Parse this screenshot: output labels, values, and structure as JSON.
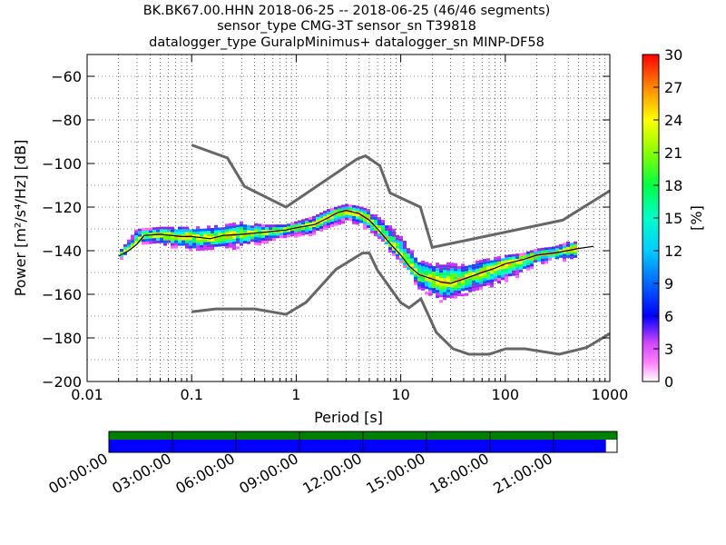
{
  "chart_data": {
    "type": "heatmap",
    "title_lines": [
      "BK.BK67.00.HHN   2018-06-25 -- 2018-06-25  (46/46 segments)",
      "sensor_type CMG-3T sensor_sn T39818",
      "datalogger_type GuralpMinimus+ datalogger_sn MINP-DF58"
    ],
    "xlabel": "Period [s]",
    "ylabel": "Power [m²/s⁴/Hz] [dB]",
    "x_scale": "log",
    "xlim": [
      0.01,
      1000
    ],
    "ylim": [
      -200,
      -50
    ],
    "x_ticks": [
      0.01,
      0.1,
      1,
      10,
      100,
      1000
    ],
    "x_tick_labels": [
      "0.01",
      "0.1",
      "1",
      "10",
      "100",
      "1000"
    ],
    "y_ticks": [
      -200,
      -180,
      -160,
      -140,
      -120,
      -100,
      -80,
      -60
    ],
    "y_tick_labels": [
      "−200",
      "−180",
      "−160",
      "−140",
      "−120",
      "−100",
      "−80",
      "−60"
    ],
    "grid": true,
    "colorbar": {
      "label": "[%]",
      "range": [
        0,
        30
      ],
      "ticks": [
        0,
        3,
        6,
        9,
        12,
        15,
        18,
        21,
        24,
        27,
        30
      ],
      "colormap": "pqlx"
    },
    "nhnm": {
      "name": "NHNM",
      "x": [
        0.1,
        0.22,
        0.32,
        0.8,
        3.8,
        4.6,
        6.3,
        7.9,
        15.4,
        20,
        354,
        1000
      ],
      "y": [
        -91.5,
        -97.4,
        -110.5,
        -120,
        -98,
        -96.5,
        -101,
        -113.5,
        -120,
        -138.5,
        -126,
        -112.5
      ]
    },
    "nlnm": {
      "name": "NLNM",
      "x": [
        0.1,
        0.17,
        0.4,
        0.8,
        1.24,
        2.4,
        4.3,
        5,
        6,
        10,
        12,
        15.6,
        21.9,
        31.6,
        45,
        70,
        101,
        154,
        328,
        600,
        1000
      ],
      "y": [
        -168,
        -166.7,
        -166.7,
        -169.2,
        -163.7,
        -148.6,
        -141.1,
        -141.1,
        -149,
        -163.8,
        -166.2,
        -162.1,
        -177.5,
        -185,
        -187.5,
        -187.5,
        -185,
        -185,
        -187.5,
        -184.4,
        -178
      ]
    },
    "mode_curve": {
      "x": [
        0.02,
        0.025,
        0.03,
        0.035,
        0.05,
        0.08,
        0.1,
        0.15,
        0.2,
        0.3,
        0.5,
        0.8,
        1,
        1.5,
        2,
        2.5,
        3,
        4,
        5,
        6,
        8,
        10,
        12,
        15,
        20,
        25,
        30,
        40,
        60,
        80,
        100,
        150,
        200,
        300,
        500,
        700
      ],
      "y": [
        -142.5,
        -140,
        -137,
        -133,
        -132.5,
        -133.5,
        -133.5,
        -134.5,
        -133,
        -132.5,
        -131.5,
        -130.5,
        -129.5,
        -128,
        -125,
        -122.5,
        -121.5,
        -123,
        -126,
        -130,
        -137,
        -142,
        -147,
        -151,
        -153,
        -154.5,
        -155,
        -153,
        -150,
        -148,
        -146,
        -144,
        -142,
        -141,
        -139,
        -138
      ]
    },
    "psd_spread": {
      "x": [
        0.02,
        0.03,
        0.05,
        0.1,
        0.2,
        0.3,
        0.5,
        0.8,
        1,
        1.5,
        2,
        3,
        4,
        5,
        6,
        8,
        10,
        12,
        15,
        20,
        25,
        30,
        40,
        60,
        100,
        150,
        200,
        300,
        500
      ],
      "upper": [
        -141,
        -130,
        -129,
        -129,
        -128,
        -126.5,
        -128,
        -128,
        -126.5,
        -124,
        -121,
        -118.5,
        -119.5,
        -121,
        -124,
        -128.5,
        -133,
        -138,
        -144,
        -146,
        -145,
        -145.5,
        -146,
        -144,
        -142,
        -141,
        -139,
        -138,
        -134
      ],
      "lower": [
        -144.5,
        -136,
        -137,
        -140,
        -139,
        -138,
        -136,
        -133,
        -133,
        -132,
        -129,
        -126,
        -128,
        -130.5,
        -133.5,
        -140,
        -145,
        -150,
        -157,
        -161,
        -163,
        -162,
        -160,
        -157,
        -154,
        -150,
        -146,
        -144,
        -144
      ]
    },
    "timeline": {
      "tick_labels": [
        "00:00:00",
        "03:00:00",
        "06:00:00",
        "09:00:00",
        "12:00:00",
        "15:00:00",
        "18:00:00",
        "21:00:00"
      ],
      "data_coverage": [
        0,
        1
      ],
      "psd_coverage": [
        0,
        0.978
      ]
    }
  },
  "colors": {
    "noise_models": "#666666",
    "mode_line": "#000000",
    "coverage_top": "#008000",
    "coverage_bottom": "#0000ff"
  }
}
